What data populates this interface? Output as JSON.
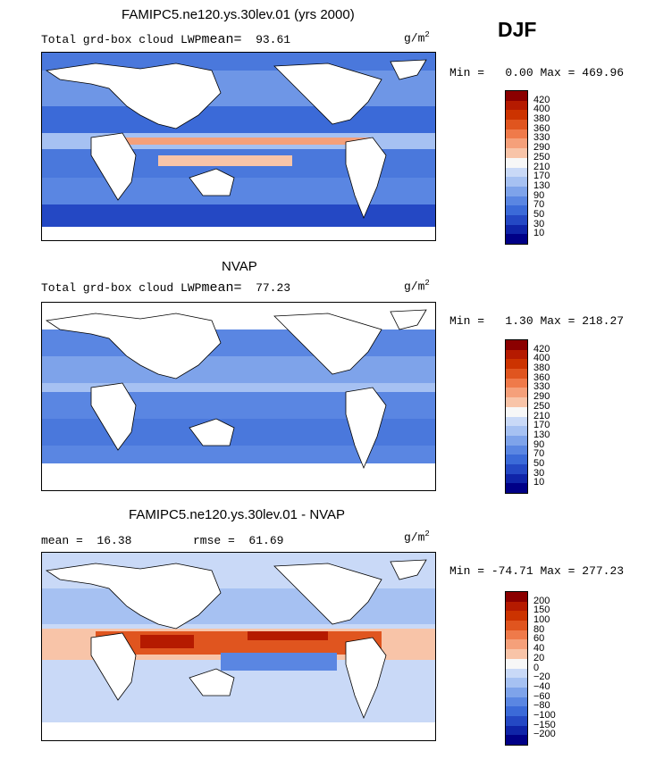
{
  "season": "DJF",
  "panels": [
    {
      "title": "FAMIPC5.ne120.ys.30lev.01 (yrs 2000)",
      "variable": "Total grd-box cloud LWP",
      "mean_label": "mean=",
      "mean_value": "93.61",
      "units": "g/m",
      "units_exp": "2",
      "min_label": "Min =",
      "min_value": "0.00",
      "max_label": "Max =",
      "max_value": "469.96",
      "levels": [
        "420",
        "400",
        "380",
        "360",
        "330",
        "290",
        "250",
        "210",
        "170",
        "130",
        "90",
        "70",
        "50",
        "30",
        "10"
      ]
    },
    {
      "title": "NVAP",
      "variable": "Total grd-box cloud LWP",
      "mean_label": "mean=",
      "mean_value": "77.23",
      "units": "g/m",
      "units_exp": "2",
      "min_label": "Min =",
      "min_value": "1.30",
      "max_label": "Max =",
      "max_value": "218.27",
      "levels": [
        "420",
        "400",
        "380",
        "360",
        "330",
        "290",
        "250",
        "210",
        "170",
        "130",
        "90",
        "70",
        "50",
        "30",
        "10"
      ]
    },
    {
      "title": "FAMIPC5.ne120.ys.30lev.01 - NVAP",
      "mean_label": "mean =",
      "mean_value": "16.38",
      "rmse_label": "rmse =",
      "rmse_value": "61.69",
      "units": "g/m",
      "units_exp": "2",
      "min_label": "Min =",
      "min_value": "-74.71",
      "max_label": "Max =",
      "max_value": "277.23",
      "levels": [
        "200",
        "150",
        "100",
        "80",
        "60",
        "40",
        "20",
        "0",
        "−20",
        "−40",
        "−60",
        "−80",
        "−100",
        "−150",
        "−200"
      ]
    }
  ],
  "colorbar_colors": [
    "#8b0000",
    "#b51a00",
    "#cc3300",
    "#e0551f",
    "#ef7a4a",
    "#f5a07a",
    "#f8c4a8",
    "#f7f7f7",
    "#c9d9f7",
    "#a6c1f2",
    "#7ea3ea",
    "#5a86e2",
    "#3b6ad8",
    "#2448c4",
    "#0f24a8",
    "#000087"
  ]
}
